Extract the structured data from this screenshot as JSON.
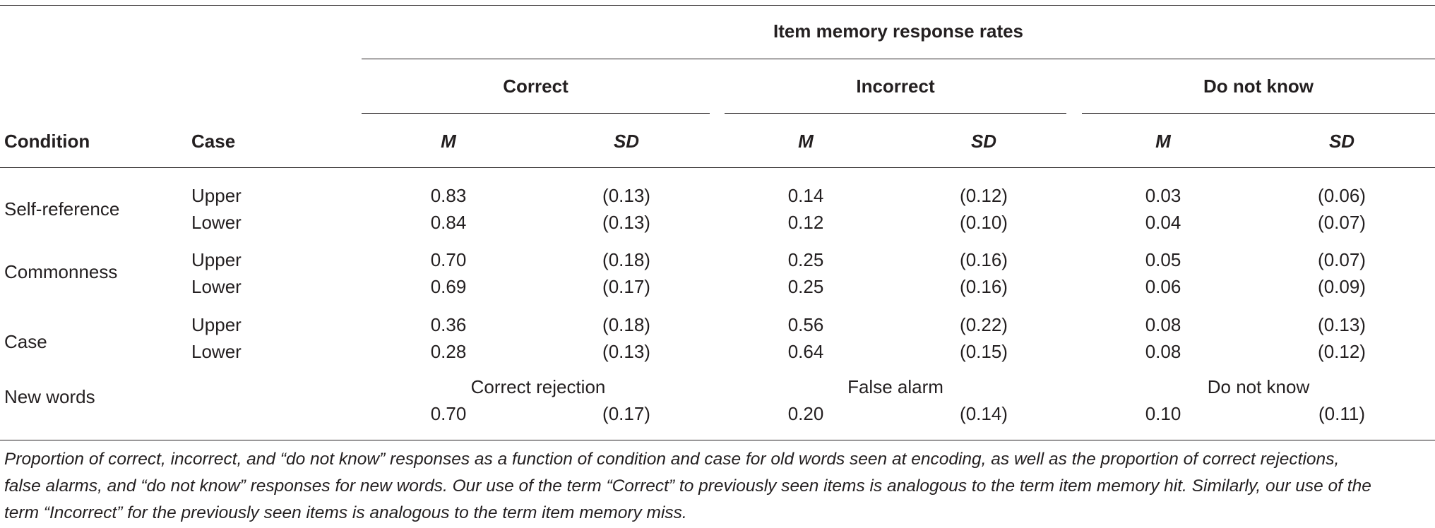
{
  "header": {
    "group_title": "Item memory response rates",
    "condition": "Condition",
    "case": "Case",
    "groups": [
      "Correct",
      "Incorrect",
      "Do not know"
    ],
    "stat_m": "M",
    "stat_sd": "SD"
  },
  "rows": [
    {
      "condition": "Self-reference",
      "cases": [
        {
          "case": "Upper",
          "values": [
            "0.83",
            "(0.13)",
            "0.14",
            "(0.12)",
            "0.03",
            "(0.06)"
          ]
        },
        {
          "case": "Lower",
          "values": [
            "0.84",
            "(0.13)",
            "0.12",
            "(0.10)",
            "0.04",
            "(0.07)"
          ]
        }
      ]
    },
    {
      "condition": "Commonness",
      "cases": [
        {
          "case": "Upper",
          "values": [
            "0.70",
            "(0.18)",
            "0.25",
            "(0.16)",
            "0.05",
            "(0.07)"
          ]
        },
        {
          "case": "Lower",
          "values": [
            "0.69",
            "(0.17)",
            "0.25",
            "(0.16)",
            "0.06",
            "(0.09)"
          ]
        }
      ]
    },
    {
      "condition": "Case",
      "cases": [
        {
          "case": "Upper",
          "values": [
            "0.36",
            "(0.18)",
            "0.56",
            "(0.22)",
            "0.08",
            "(0.13)"
          ]
        },
        {
          "case": "Lower",
          "values": [
            "0.28",
            "(0.13)",
            "0.64",
            "(0.15)",
            "0.08",
            "(0.12)"
          ]
        }
      ]
    }
  ],
  "new_words": {
    "condition": "New words",
    "labels": [
      "Correct rejection",
      "False alarm",
      "Do not know"
    ],
    "values": [
      "0.70",
      "(0.17)",
      "0.20",
      "(0.14)",
      "0.10",
      "(0.11)"
    ]
  },
  "note": [
    "Proportion of correct, incorrect, and “do not know” responses as a function of condition and case for old words seen at encoding, as well as the proportion of correct rejections,",
    "false alarms, and “do not know” responses for new words. Our use of the term “Correct” to previously seen items is analogous to the term item memory hit. Similarly, our use of the",
    "term “Incorrect” for the previously seen items is analogous to the term item memory miss."
  ]
}
